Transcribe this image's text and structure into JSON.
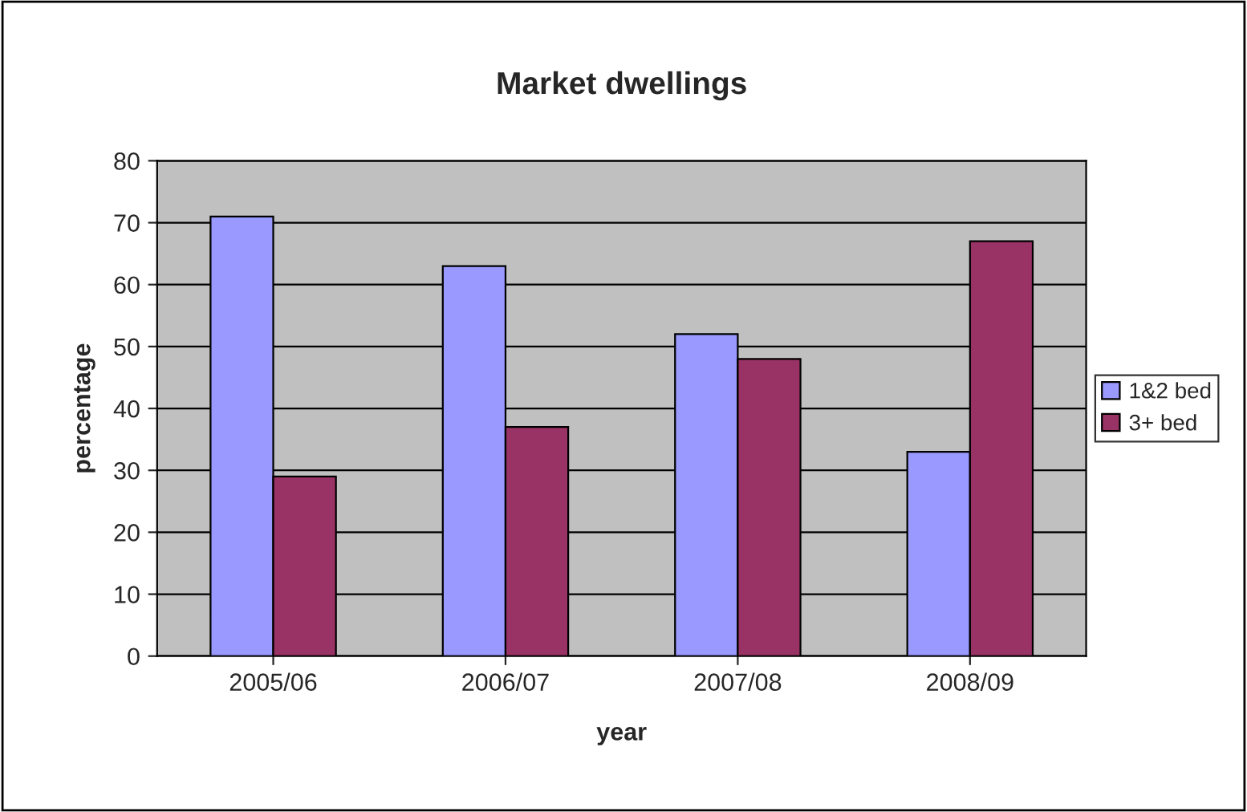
{
  "chart_data": {
    "type": "bar",
    "title": "Market dwellings",
    "xlabel": "year",
    "ylabel": "percentage",
    "categories": [
      "2005/06",
      "2006/07",
      "2007/08",
      "2008/09"
    ],
    "series": [
      {
        "name": "1&2 bed",
        "color": "#9999ff",
        "values": [
          71,
          63,
          52,
          33
        ]
      },
      {
        "name": "3+ bed",
        "color": "#993366",
        "values": [
          29,
          37,
          48,
          67
        ]
      }
    ],
    "ylim": [
      0,
      80
    ],
    "yticks": [
      0,
      10,
      20,
      30,
      40,
      50,
      60,
      70,
      80
    ],
    "grid": "y",
    "legend": "right"
  }
}
